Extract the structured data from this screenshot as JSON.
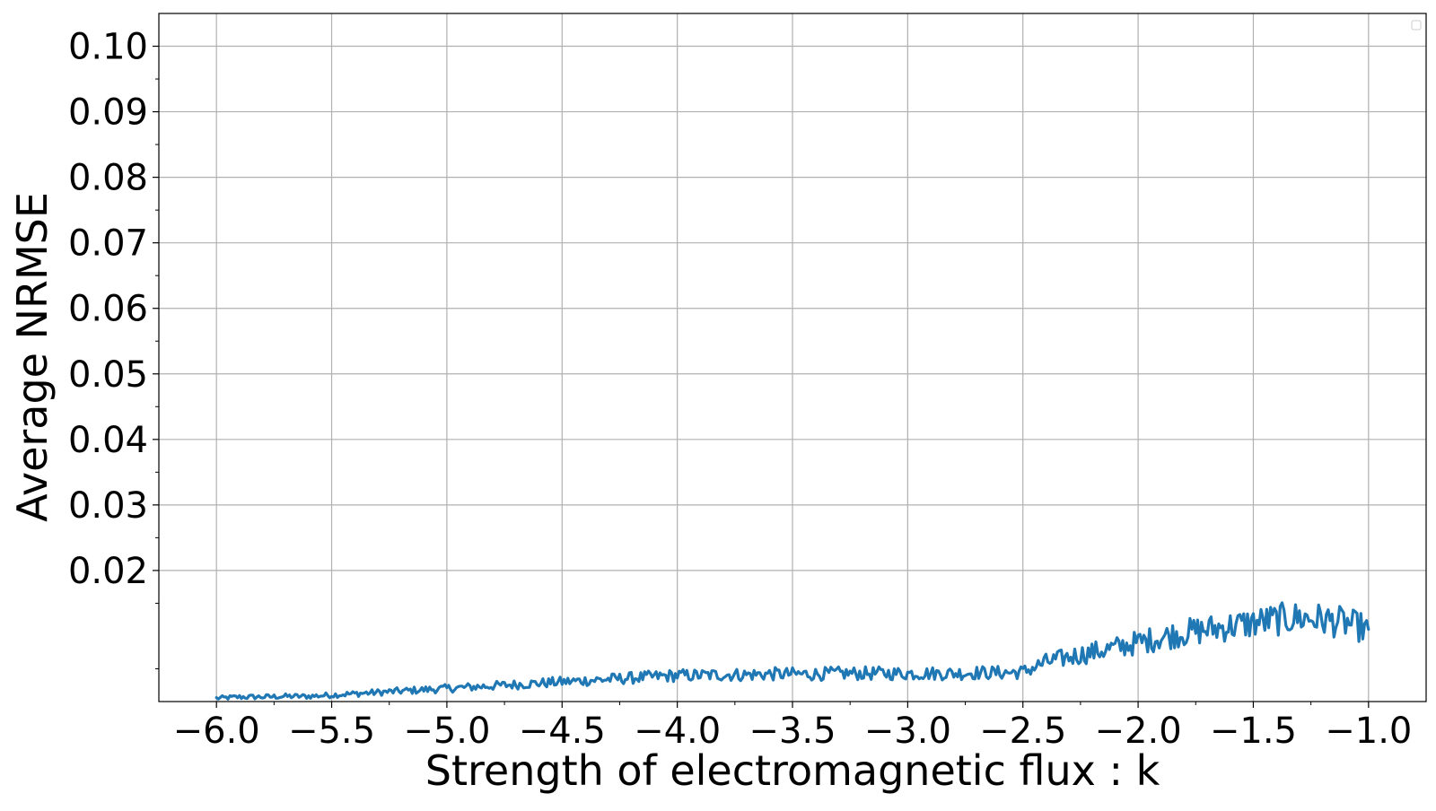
{
  "chart_data": {
    "type": "line",
    "title": "",
    "xlabel": "Strength of electromagnetic flux : k",
    "ylabel": "Average NRMSE",
    "xlim": [
      -6.25,
      -0.75
    ],
    "ylim": [
      0.0,
      0.105
    ],
    "x_ticks": [
      -6.0,
      -5.5,
      -5.0,
      -4.5,
      -4.0,
      -3.5,
      -3.0,
      -2.5,
      -2.0,
      -1.5,
      -1.0
    ],
    "x_tick_labels": [
      "−6.0",
      "−5.5",
      "−5.0",
      "−4.5",
      "−4.0",
      "−3.5",
      "−3.0",
      "−2.5",
      "−2.0",
      "−1.5",
      "−1.0"
    ],
    "y_ticks": [
      0.02,
      0.03,
      0.04,
      0.05,
      0.06,
      0.07,
      0.08,
      0.09,
      0.1
    ],
    "y_tick_labels": [
      "0.02",
      "0.03",
      "0.04",
      "0.05",
      "0.06",
      "0.07",
      "0.08",
      "0.09",
      "0.10"
    ],
    "grid": true,
    "legend": {
      "position": "top-right",
      "entries": []
    },
    "series": [
      {
        "color": "#1f77b4",
        "x": [
          -6.0,
          -5.9,
          -5.8,
          -5.7,
          -5.6,
          -5.5,
          -5.4,
          -5.3,
          -5.2,
          -5.1,
          -5.0,
          -4.9,
          -4.8,
          -4.7,
          -4.6,
          -4.5,
          -4.4,
          -4.3,
          -4.2,
          -4.1,
          -4.0,
          -3.9,
          -3.8,
          -3.7,
          -3.6,
          -3.5,
          -3.4,
          -3.3,
          -3.2,
          -3.1,
          -3.0,
          -2.9,
          -2.8,
          -2.7,
          -2.6,
          -2.5,
          -2.4,
          -2.3,
          -2.2,
          -2.1,
          -2.0,
          -1.9,
          -1.8,
          -1.7,
          -1.6,
          -1.5,
          -1.4,
          -1.3,
          -1.2,
          -1.1,
          -1.0
        ],
        "y": [
          0.0005,
          0.0007,
          0.0007,
          0.0008,
          0.0008,
          0.001,
          0.0012,
          0.0014,
          0.0016,
          0.0018,
          0.002,
          0.0022,
          0.0024,
          0.0026,
          0.0028,
          0.003,
          0.0032,
          0.0034,
          0.0036,
          0.0038,
          0.004,
          0.004,
          0.0041,
          0.0041,
          0.0042,
          0.0042,
          0.0042,
          0.0043,
          0.0043,
          0.0043,
          0.0043,
          0.0043,
          0.0043,
          0.0044,
          0.0044,
          0.0045,
          0.006,
          0.0068,
          0.0075,
          0.0082,
          0.009,
          0.0098,
          0.0105,
          0.011,
          0.0115,
          0.012,
          0.0125,
          0.0128,
          0.0125,
          0.012,
          0.011
        ]
      }
    ]
  }
}
